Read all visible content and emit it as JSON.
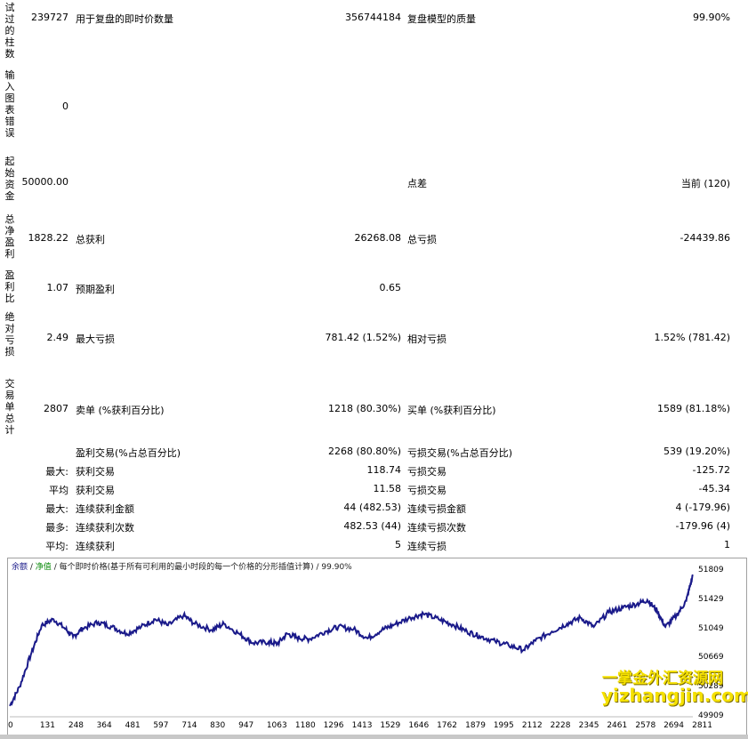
{
  "labels_vertical": {
    "bars_tested": "试过的柱数",
    "chart_errors": "输入图表错误",
    "initial_deposit": "起始资金",
    "total_net_profit": "总净盈利",
    "profit_factor": "盈利比",
    "absolute_drawdown": "绝对亏损",
    "total_trades": "交易单总计"
  },
  "rows": {
    "bars": {
      "value": "239727",
      "mid_label": "用于复盘的即时价数量",
      "mid_value": "356744184",
      "right_label": "复盘模型的质量",
      "right_value": "99.90%"
    },
    "errors": {
      "value": "0"
    },
    "deposit": {
      "value": "50000.00",
      "right_label": "点差",
      "right_value": "当前 (120)"
    },
    "netprofit": {
      "value": "1828.22",
      "mid_label": "总获利",
      "mid_value": "26268.08",
      "right_label": "总亏损",
      "right_value": "-24439.86"
    },
    "pf": {
      "value": "1.07",
      "mid_label": "预期盈利",
      "mid_value": "0.65"
    },
    "absdd": {
      "value": "2.49",
      "mid_label": "最大亏损",
      "mid_value": "781.42 (1.52%)",
      "right_label": "相对亏损",
      "right_value": "1.52% (781.42)"
    },
    "trades": {
      "value": "2807",
      "mid_label": "卖单 (%获利百分比)",
      "mid_value": "1218 (80.30%)",
      "right_label": "买单 (%获利百分比)",
      "right_value": "1589 (81.18%)"
    }
  },
  "stats": [
    {
      "prefix": "",
      "mid_label": "盈利交易(%占总百分比)",
      "mid_value": "2268 (80.80%)",
      "right_label": "亏损交易(%占总百分比)",
      "right_value": "539 (19.20%)"
    },
    {
      "prefix": "最大:",
      "mid_label": "获利交易",
      "mid_value": "118.74",
      "right_label": "亏损交易",
      "right_value": "-125.72"
    },
    {
      "prefix": "平均",
      "mid_label": "获利交易",
      "mid_value": "11.58",
      "right_label": "亏损交易",
      "right_value": "-45.34"
    },
    {
      "prefix": "最大:",
      "mid_label": "连续获利金额",
      "mid_value": "44 (482.53)",
      "right_label": "连续亏损金额",
      "right_value": "4 (-179.96)"
    },
    {
      "prefix": "最多:",
      "mid_label": "连续获利次数",
      "mid_value": "482.53 (44)",
      "right_label": "连续亏损次数",
      "right_value": "-179.96 (4)"
    },
    {
      "prefix": "平均:",
      "mid_label": "连续获利",
      "mid_value": "5",
      "right_label": "连续亏损",
      "right_value": "1"
    }
  ],
  "chart": {
    "legend_balance": "余额",
    "legend_equity": "净值",
    "legend_text": "每个即时价格(基于所有可利用的最小时段的每一个价格的分形插值计算)",
    "legend_quality": "99.90%",
    "line_color": "#1a1a8a"
  },
  "chart_data": {
    "type": "line",
    "x_ticks": [
      "0",
      "131",
      "248",
      "364",
      "481",
      "597",
      "714",
      "830",
      "947",
      "1063",
      "1180",
      "1296",
      "1413",
      "1529",
      "1646",
      "1762",
      "1879",
      "1995",
      "2112",
      "2228",
      "2345",
      "2461",
      "2578",
      "2694",
      "2811"
    ],
    "y_ticks": [
      "51809",
      "51429",
      "51049",
      "50669",
      "50289",
      "49909"
    ],
    "ylim": [
      49909,
      51809
    ],
    "xlim": [
      0,
      2807
    ],
    "series": [
      {
        "values": [
          [
            0,
            50050
          ],
          [
            40,
            50300
          ],
          [
            90,
            50750
          ],
          [
            131,
            51100
          ],
          [
            180,
            51180
          ],
          [
            230,
            51050
          ],
          [
            260,
            50950
          ],
          [
            300,
            51060
          ],
          [
            364,
            51140
          ],
          [
            420,
            51080
          ],
          [
            481,
            50990
          ],
          [
            540,
            51080
          ],
          [
            597,
            51180
          ],
          [
            650,
            51100
          ],
          [
            714,
            51230
          ],
          [
            760,
            51120
          ],
          [
            830,
            51040
          ],
          [
            880,
            51120
          ],
          [
            947,
            50980
          ],
          [
            1000,
            50870
          ],
          [
            1063,
            50880
          ],
          [
            1100,
            50860
          ],
          [
            1140,
            50990
          ],
          [
            1180,
            50940
          ],
          [
            1230,
            50920
          ],
          [
            1296,
            51020
          ],
          [
            1350,
            51080
          ],
          [
            1413,
            51050
          ],
          [
            1470,
            50930
          ],
          [
            1529,
            51040
          ],
          [
            1580,
            51110
          ],
          [
            1646,
            51200
          ],
          [
            1700,
            51250
          ],
          [
            1762,
            51180
          ],
          [
            1820,
            51110
          ],
          [
            1879,
            51020
          ],
          [
            1930,
            50960
          ],
          [
            1995,
            50890
          ],
          [
            2050,
            50840
          ],
          [
            2112,
            50780
          ],
          [
            2160,
            50900
          ],
          [
            2228,
            51020
          ],
          [
            2290,
            51120
          ],
          [
            2345,
            51200
          ],
          [
            2400,
            51080
          ],
          [
            2461,
            51270
          ],
          [
            2520,
            51330
          ],
          [
            2578,
            51380
          ],
          [
            2620,
            51430
          ],
          [
            2660,
            51290
          ],
          [
            2694,
            51080
          ],
          [
            2740,
            51230
          ],
          [
            2780,
            51420
          ],
          [
            2807,
            51760
          ]
        ]
      }
    ]
  },
  "watermark": {
    "line1": "一掌金外汇资源网",
    "line2": "yizhangjin.com"
  }
}
